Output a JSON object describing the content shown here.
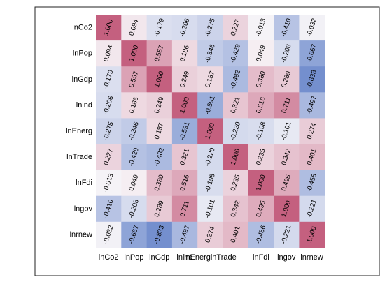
{
  "chart_data": {
    "type": "heatmap",
    "title": "",
    "xlabel": "",
    "ylabel": "",
    "variables": [
      "lnCo2",
      "lnPop",
      "lnGdp",
      "lnind",
      "lnEnerg",
      "lnTrade",
      "lnFdi",
      "lngov",
      "lnrnew"
    ],
    "x_tick_labels": [
      "lnCo2",
      "lnPop",
      "lnGdp",
      "lnind",
      "lnEnerglnTrade",
      "",
      "lnFdi",
      "lngov",
      "lnrnew"
    ],
    "matrix": [
      [
        "1.000",
        "0.094",
        "-0.179",
        "-0.206",
        "-0.275",
        "0.227",
        "-0.013",
        "-0.410",
        "-0.032"
      ],
      [
        "0.094",
        "1.000",
        "0.557",
        "0.186",
        "-0.346",
        "-0.429",
        "0.049",
        "-0.208",
        "-0.667"
      ],
      [
        "-0.179",
        "0.557",
        "1.000",
        "0.249",
        "0.187",
        "-0.482",
        "0.380",
        "0.289",
        "-0.833"
      ],
      [
        "-0.206",
        "0.186",
        "0.249",
        "1.000",
        "-0.591",
        "0.321",
        "0.516",
        "0.711",
        "-0.497"
      ],
      [
        "-0.275",
        "-0.346",
        "0.187",
        "-0.591",
        "1.000",
        "-0.220",
        "-0.198",
        "-0.101",
        "0.274"
      ],
      [
        "0.227",
        "-0.429",
        "-0.482",
        "0.321",
        "-0.220",
        "1.000",
        "0.235",
        "0.342",
        "0.401"
      ],
      [
        "-0.013",
        "0.049",
        "0.380",
        "0.516",
        "-0.198",
        "0.235",
        "1.000",
        "0.495",
        "-0.456"
      ],
      [
        "-0.410",
        "-0.208",
        "0.289",
        "0.711",
        "-0.101",
        "0.342",
        "0.495",
        "1.000",
        "-0.221"
      ],
      [
        "-0.032",
        "-0.667",
        "-0.833",
        "-0.497",
        "0.274",
        "0.401",
        "-0.456",
        "-0.221",
        "1.000"
      ]
    ],
    "color_scale": {
      "negative": "#5a7bc6",
      "zero": "#f7f5f8",
      "positive": "#c4607f",
      "range": [
        -1,
        1
      ]
    },
    "grid": false,
    "legend": "none"
  }
}
